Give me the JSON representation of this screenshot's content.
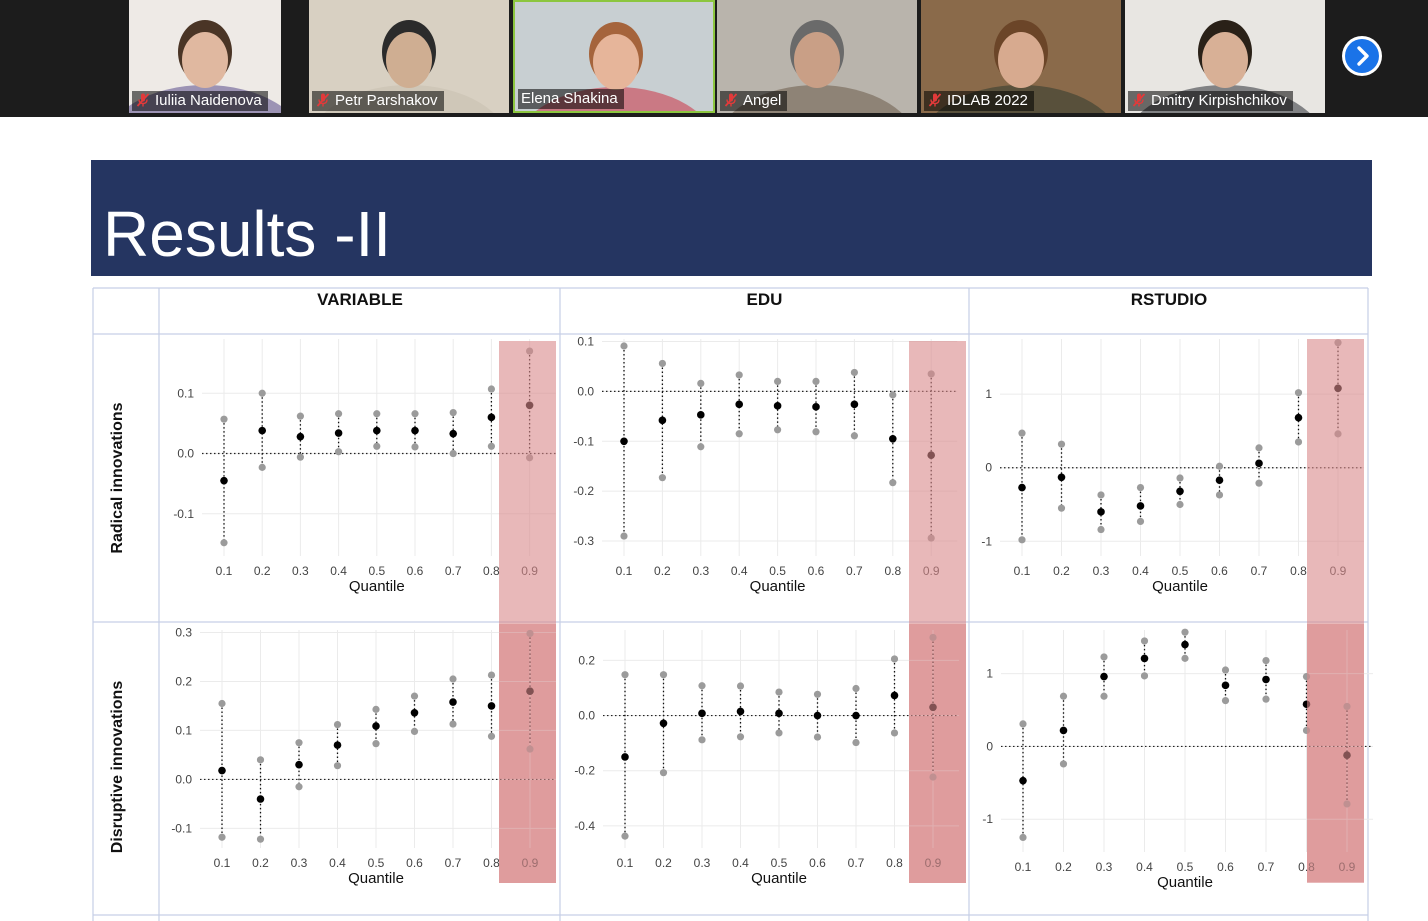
{
  "participants": [
    {
      "name": "Iuliia Naidenova",
      "muted": true,
      "active": false,
      "bg": "#eeeae6",
      "shirt": "#5a4a8a",
      "hair": "#4a3526",
      "skin": "#e0b8a0"
    },
    {
      "name": "Petr Parshakov",
      "muted": true,
      "active": false,
      "bg": "#d8d0c2",
      "shirt": "#c9bfb0",
      "hair": "#2b2b2b",
      "skin": "#cfae92"
    },
    {
      "name": "Elena Shakina",
      "muted": false,
      "active": true,
      "bg": "#c8cfd2",
      "shirt": "#cc3344",
      "hair": "#a5643c",
      "skin": "#e6b59a"
    },
    {
      "name": "Angel",
      "muted": true,
      "active": false,
      "bg": "#b9b4ac",
      "shirt": "#6b5b4b",
      "hair": "#6a6a6a",
      "skin": "#c99f86"
    },
    {
      "name": "IDLAB 2022",
      "muted": true,
      "active": false,
      "bg": "#8a6a4a",
      "shirt": "#2f3a30",
      "hair": "#6b4528",
      "skin": "#d7aa8f"
    },
    {
      "name": "Dmitry Kirpishchikov",
      "muted": true,
      "active": false,
      "bg": "#e8e6e2",
      "shirt": "#2b2f36",
      "hair": "#2a2118",
      "skin": "#d8b096"
    }
  ],
  "next_icon": "chevron-right-icon",
  "mic_icon": "mic-off-icon",
  "slide": {
    "title": "Results -II",
    "col_headers": [
      "VARIABLE",
      "EDU",
      "RSTUDIO"
    ],
    "row_headers": [
      "Radical innovations",
      "Disruptive innovations"
    ],
    "highlight_color": "#d9888a"
  },
  "chart_data": [
    {
      "type": "scatter",
      "xlabel": "Quantile",
      "x": [
        0.1,
        0.2,
        0.3,
        0.4,
        0.5,
        0.6,
        0.7,
        0.8,
        0.9
      ],
      "ylim": [
        -0.17,
        0.19
      ],
      "yticks": [
        -0.1,
        0.0,
        0.1
      ],
      "series": [
        {
          "values": [
            -0.045,
            0.038,
            0.028,
            0.034,
            0.038,
            0.038,
            0.033,
            0.06,
            0.08
          ]
        },
        {
          "values": [
            0.057,
            0.1,
            0.062,
            0.066,
            0.066,
            0.066,
            0.068,
            0.107,
            0.17
          ]
        },
        {
          "values": [
            -0.148,
            -0.023,
            -0.006,
            0.003,
            0.012,
            0.011,
            0.0,
            0.012,
            -0.007
          ]
        }
      ]
    },
    {
      "type": "scatter",
      "xlabel": "Quantile",
      "x": [
        0.1,
        0.2,
        0.3,
        0.4,
        0.5,
        0.6,
        0.7,
        0.8,
        0.9
      ],
      "ylim": [
        -0.33,
        0.105
      ],
      "yticks": [
        -0.3,
        -0.2,
        -0.1,
        0.0,
        0.1
      ],
      "series": [
        {
          "values": [
            -0.1,
            -0.058,
            -0.047,
            -0.026,
            -0.029,
            -0.031,
            -0.026,
            -0.095,
            -0.128
          ]
        },
        {
          "values": [
            0.091,
            0.056,
            0.016,
            0.033,
            0.02,
            0.02,
            0.038,
            -0.007,
            0.035
          ]
        },
        {
          "values": [
            -0.29,
            -0.173,
            -0.111,
            -0.085,
            -0.077,
            -0.081,
            -0.089,
            -0.183,
            -0.294
          ]
        }
      ]
    },
    {
      "type": "scatter",
      "xlabel": "Quantile",
      "x": [
        0.1,
        0.2,
        0.3,
        0.4,
        0.5,
        0.6,
        0.7,
        0.8,
        0.9
      ],
      "ylim": [
        -1.2,
        1.75
      ],
      "yticks": [
        -1,
        0,
        1
      ],
      "series": [
        {
          "values": [
            -0.27,
            -0.13,
            -0.6,
            -0.52,
            -0.32,
            -0.17,
            0.06,
            0.68,
            1.08
          ]
        },
        {
          "values": [
            0.47,
            0.32,
            -0.37,
            -0.27,
            -0.14,
            0.02,
            0.27,
            1.02,
            1.7
          ]
        },
        {
          "values": [
            -0.98,
            -0.55,
            -0.84,
            -0.73,
            -0.5,
            -0.37,
            -0.21,
            0.35,
            0.46
          ]
        }
      ]
    },
    {
      "type": "scatter",
      "xlabel": "Quantile",
      "x": [
        0.1,
        0.2,
        0.3,
        0.4,
        0.5,
        0.6,
        0.7,
        0.8,
        0.9
      ],
      "ylim": [
        -0.14,
        0.305
      ],
      "yticks": [
        -0.1,
        0.0,
        0.1,
        0.2,
        0.3
      ],
      "series": [
        {
          "values": [
            0.018,
            -0.04,
            0.03,
            0.07,
            0.109,
            0.136,
            0.158,
            0.15,
            0.18
          ]
        },
        {
          "values": [
            0.155,
            0.04,
            0.075,
            0.112,
            0.143,
            0.17,
            0.205,
            0.213,
            0.298
          ]
        },
        {
          "values": [
            -0.118,
            -0.122,
            -0.015,
            0.028,
            0.073,
            0.098,
            0.113,
            0.088,
            0.062
          ]
        }
      ]
    },
    {
      "type": "scatter",
      "xlabel": "Quantile",
      "x": [
        0.1,
        0.2,
        0.3,
        0.4,
        0.5,
        0.6,
        0.7,
        0.8,
        0.9
      ],
      "ylim": [
        -0.48,
        0.31
      ],
      "yticks": [
        -0.4,
        -0.2,
        0.0,
        0.2
      ],
      "series": [
        {
          "values": [
            -0.15,
            -0.028,
            0.008,
            0.015,
            0.008,
            0.0,
            0.0,
            0.073,
            0.03
          ]
        },
        {
          "values": [
            0.148,
            0.148,
            0.108,
            0.107,
            0.085,
            0.077,
            0.098,
            0.205,
            0.283
          ]
        },
        {
          "values": [
            -0.437,
            -0.207,
            -0.088,
            -0.077,
            -0.063,
            -0.078,
            -0.098,
            -0.063,
            -0.223
          ]
        }
      ]
    },
    {
      "type": "scatter",
      "xlabel": "Quantile",
      "x": [
        0.1,
        0.2,
        0.3,
        0.4,
        0.5,
        0.6,
        0.7,
        0.8,
        0.9
      ],
      "ylim": [
        -1.45,
        1.6
      ],
      "yticks": [
        -1,
        0,
        1
      ],
      "series": [
        {
          "values": [
            -0.47,
            0.22,
            0.96,
            1.21,
            1.4,
            0.84,
            0.92,
            0.58,
            -0.12
          ]
        },
        {
          "values": [
            0.31,
            0.69,
            1.23,
            1.45,
            1.57,
            1.05,
            1.18,
            0.96,
            0.55
          ]
        },
        {
          "values": [
            -1.25,
            -0.24,
            0.69,
            0.97,
            1.21,
            0.63,
            0.65,
            0.22,
            -0.79
          ]
        }
      ]
    }
  ]
}
